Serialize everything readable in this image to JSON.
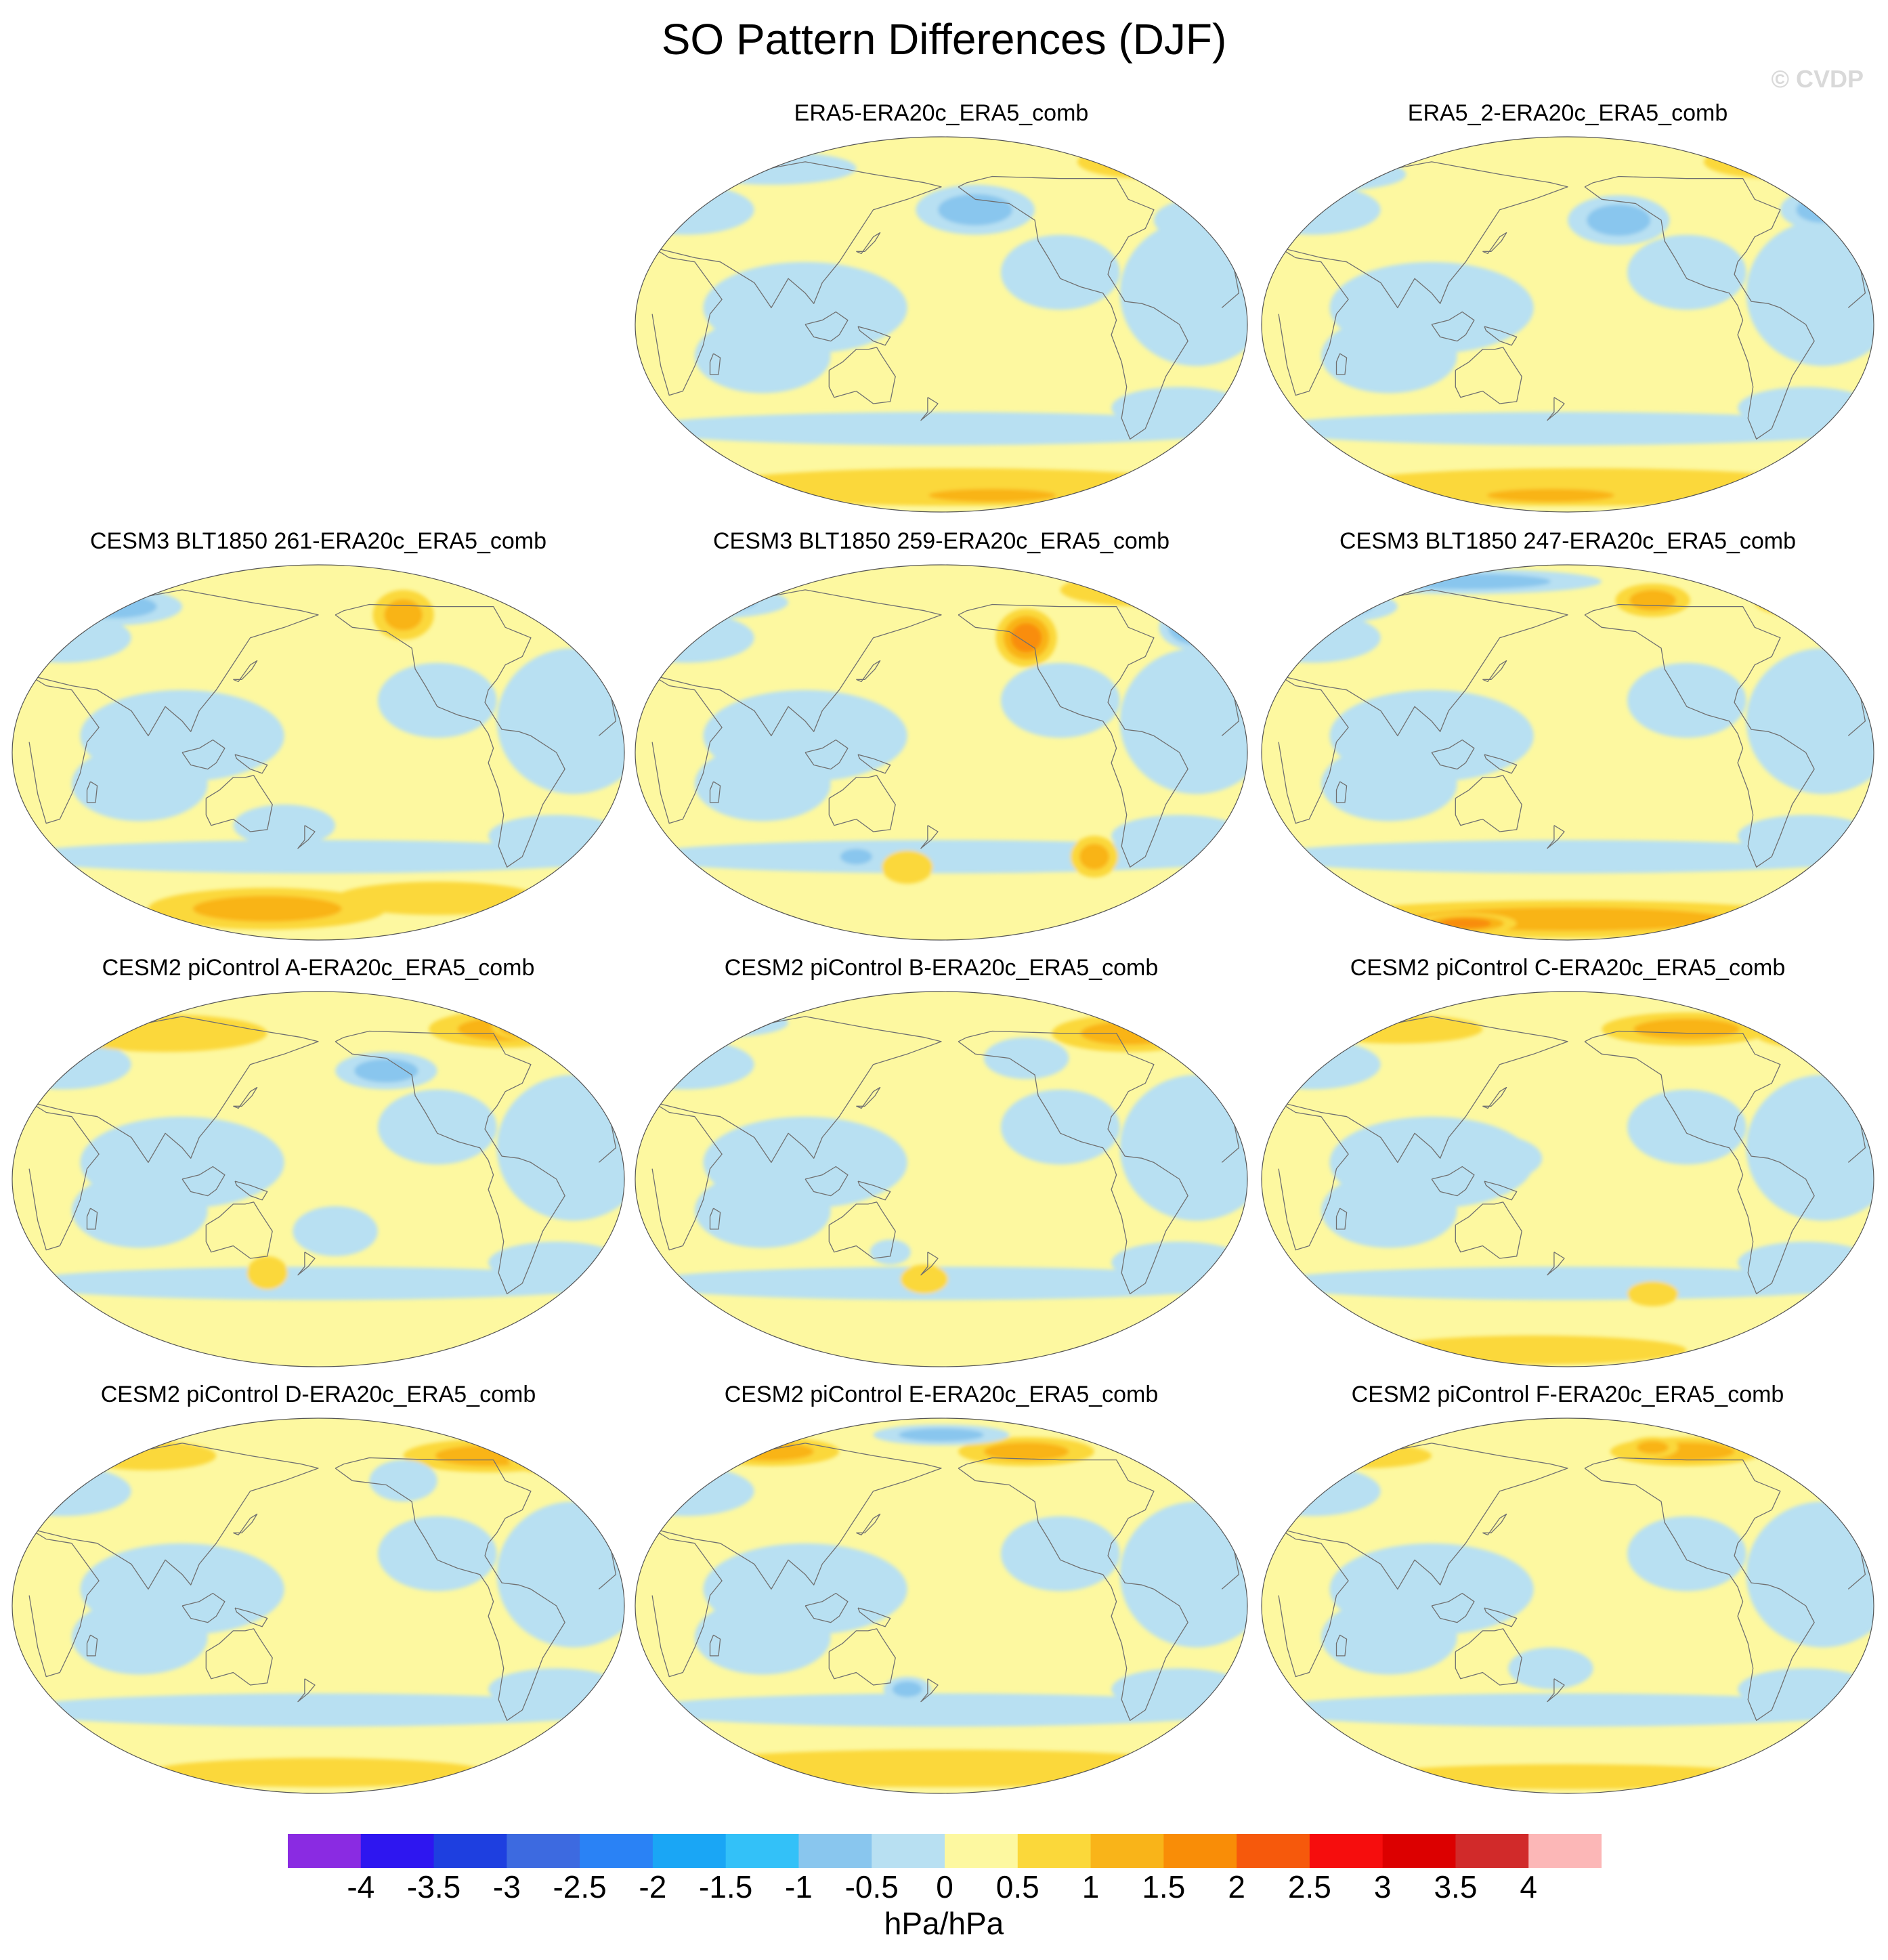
{
  "figure": {
    "title": "SO Pattern Differences (DJF)",
    "watermark": "© CVDP"
  },
  "chart_data": {
    "type": "heatmap",
    "projection": "Robinson-like global map, Pacific-centred",
    "variable": "Southern Oscillation sea level pressure pattern difference (DJF)",
    "colorbar": {
      "units": "hPa/hPa",
      "levels": [
        -4,
        -3.5,
        -3,
        -2.5,
        -2,
        -1.5,
        -1,
        -0.5,
        0,
        0.5,
        1,
        1.5,
        2,
        2.5,
        3,
        3.5,
        4
      ],
      "tick_labels": [
        "-4",
        "-3.5",
        "-3",
        "-2.5",
        "-2",
        "-1.5",
        "-1",
        "-0.5",
        "0",
        "0.5",
        "1",
        "1.5",
        "2",
        "2.5",
        "3",
        "3.5",
        "4"
      ],
      "colors": [
        "#8a2be2",
        "#2e16f0",
        "#1e3fe0",
        "#3d6ae0",
        "#2a82f5",
        "#1aa6f5",
        "#33c1f8",
        "#89c6ee",
        "#b8e0f2",
        "#fdf8a0",
        "#fbd83a",
        "#f9b419",
        "#f98d07",
        "#f6590c",
        "#f60d0d",
        "#dc0000",
        "#d12a2a",
        "#fcb7b7"
      ]
    },
    "panels": [
      {
        "title": "ERA5-ERA20c_ERA5_comb",
        "summary": {
          "arctic_max": 1.2,
          "antarctic_max": 1.3,
          "tropics": "near zero",
          "min": -1.2
        }
      },
      {
        "title": "ERA5_2-ERA20c_ERA5_comb",
        "summary": {
          "arctic_max": 1.3,
          "antarctic_max": 1.4,
          "tropics": "near zero",
          "min": -1.7
        }
      },
      {
        "title": "CESM3 BLT1850 261-ERA20c_ERA5_comb",
        "summary": {
          "arctic_max": 1.4,
          "antarctic_max": 1.4,
          "tropics": "near zero",
          "min": -1.6
        }
      },
      {
        "title": "CESM3 BLT1850 259-ERA20c_ERA5_comb",
        "summary": {
          "arctic_max": 1.8,
          "antarctic_max": 1.6,
          "tropics": "near zero",
          "min": -1.7
        }
      },
      {
        "title": "CESM3 BLT1850 247-ERA20c_ERA5_comb",
        "summary": {
          "arctic_max": 1.8,
          "antarctic_max": 1.9,
          "tropics": "near zero",
          "min": -1.7
        }
      },
      {
        "title": "CESM2 piControl A-ERA20c_ERA5_comb",
        "summary": {
          "arctic_max": 1.8,
          "antarctic_max": 0.9,
          "tropics": "near zero",
          "min": -1.4
        }
      },
      {
        "title": "CESM2 piControl B-ERA20c_ERA5_comb",
        "summary": {
          "arctic_max": 1.3,
          "antarctic_max": 1.0,
          "tropics": "near zero",
          "min": -1.6
        }
      },
      {
        "title": "CESM2 piControl C-ERA20c_ERA5_comb",
        "summary": {
          "arctic_max": 1.4,
          "antarctic_max": 1.2,
          "tropics": "near zero",
          "min": -0.9
        }
      },
      {
        "title": "CESM2 piControl D-ERA20c_ERA5_comb",
        "summary": {
          "arctic_max": 1.4,
          "antarctic_max": 1.1,
          "tropics": "near zero",
          "min": -1.1
        }
      },
      {
        "title": "CESM2 piControl E-ERA20c_ERA5_comb",
        "summary": {
          "arctic_max": 1.3,
          "antarctic_max": 1.2,
          "tropics": "near zero",
          "min": -1.2
        }
      },
      {
        "title": "CESM2 piControl F-ERA20c_ERA5_comb",
        "summary": {
          "arctic_max": 1.3,
          "antarctic_max": 1.1,
          "tropics": "near zero",
          "min": -1.1
        }
      }
    ]
  }
}
